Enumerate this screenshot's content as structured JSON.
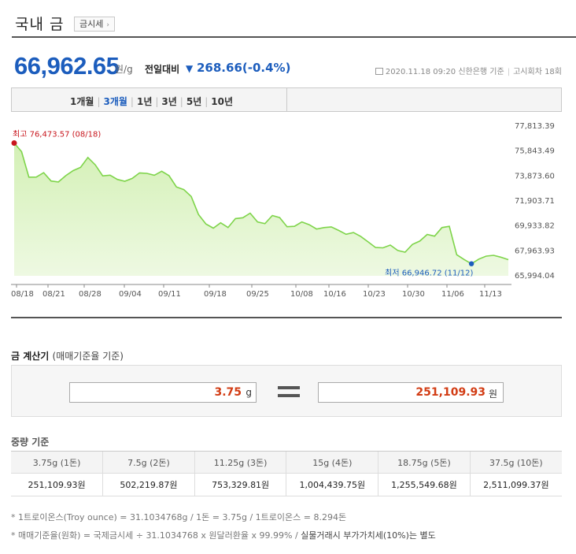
{
  "header": {
    "title": "국내 금",
    "title_button": "금시세"
  },
  "price": {
    "value": "66,962.65",
    "unit": "원/g",
    "compare_label": "전일대비",
    "direction_symbol": "▼",
    "change": "268.66",
    "change_pct": "(-0.4%)"
  },
  "meta": {
    "datetime": "2020.11.18 09:20",
    "source": "신한은행 기준",
    "notice": "고시회차 18회"
  },
  "periods": [
    {
      "label": "1개월",
      "active": false
    },
    {
      "label": "3개월",
      "active": true
    },
    {
      "label": "1년",
      "active": false
    },
    {
      "label": "3년",
      "active": false
    },
    {
      "label": "5년",
      "active": false
    },
    {
      "label": "10년",
      "active": false
    }
  ],
  "chart_data": {
    "type": "area",
    "high_label": "최고 76,473.57 (08/18)",
    "low_label": "최저 66,946.72 (11/12)",
    "y_ticks": [
      "77,813.39",
      "75,843.49",
      "73,873.60",
      "71,903.71",
      "69,933.82",
      "67,963.93",
      "65,994.04"
    ],
    "ylim": [
      65994.04,
      77813.39
    ],
    "x_ticks": [
      "08/18",
      "08/21",
      "08/28",
      "09/04",
      "09/11",
      "09/18",
      "09/25",
      "10/08",
      "10/16",
      "10/23",
      "10/30",
      "11/06",
      "11/13"
    ],
    "values": [
      76474,
      75800,
      73780,
      73790,
      74140,
      73480,
      73400,
      73900,
      74300,
      74560,
      75340,
      74750,
      73880,
      73940,
      73600,
      73460,
      73680,
      74120,
      74080,
      73930,
      74250,
      73900,
      73010,
      72800,
      72260,
      70830,
      70090,
      69760,
      70180,
      69810,
      70510,
      70580,
      70940,
      70250,
      70110,
      70750,
      70590,
      69870,
      69900,
      70250,
      70030,
      69690,
      69800,
      69860,
      69580,
      69270,
      69410,
      69100,
      68670,
      68230,
      68200,
      68420,
      68000,
      67860,
      68470,
      68740,
      69260,
      69120,
      69800,
      69900,
      67660,
      67280,
      66946.72,
      67310,
      67550,
      67610,
      67460,
      67270
    ],
    "high_index": 0,
    "low_index": 62,
    "colors": {
      "line": "#7ed44a",
      "fill_top": "#d3f0b5",
      "fill_bottom": "#eef9e2",
      "high": "#c8161d",
      "low": "#1c5dbd"
    }
  },
  "calculator": {
    "title": "금 계산기",
    "subtitle": "(매매기준율 기준)",
    "input_value": "3.75",
    "input_unit": "g",
    "output_value": "251,109.93",
    "output_unit": "원"
  },
  "weight_table": {
    "title": "중량 기준",
    "headers": [
      "3.75g (1돈)",
      "7.5g (2돈)",
      "11.25g (3돈)",
      "15g (4돈)",
      "18.75g (5돈)",
      "37.5g (10돈)"
    ],
    "values": [
      "251,109.93원",
      "502,219.87원",
      "753,329.81원",
      "1,004,439.75원",
      "1,255,549.68원",
      "2,511,099.37원"
    ]
  },
  "notes": {
    "line1": "* 1트로이온스(Troy ounce) = 31.1034768g / 1돈 = 3.75g / 1트로이온스 = 8.294돈",
    "line2_a": "* 매매기준율(원화) = 국제금시세 ÷ 31.1034768 x 원달러환율 x 99.99% / ",
    "line2_b": "실물거래시 부가가치세(10%)는 별도"
  }
}
